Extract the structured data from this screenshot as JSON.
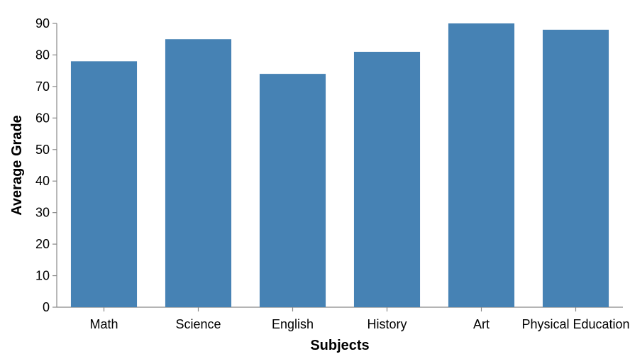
{
  "chart_data": {
    "type": "bar",
    "categories": [
      "Math",
      "Science",
      "English",
      "History",
      "Art",
      "Physical Education"
    ],
    "values": [
      78,
      85,
      74,
      81,
      90,
      88
    ],
    "title": "",
    "xlabel": "Subjects",
    "ylabel": "Average Grade",
    "ylim": [
      0,
      90
    ],
    "yticks": [
      0,
      10,
      20,
      30,
      40,
      50,
      60,
      70,
      80,
      90
    ],
    "grid": false,
    "bar_color": "#4682b4"
  }
}
